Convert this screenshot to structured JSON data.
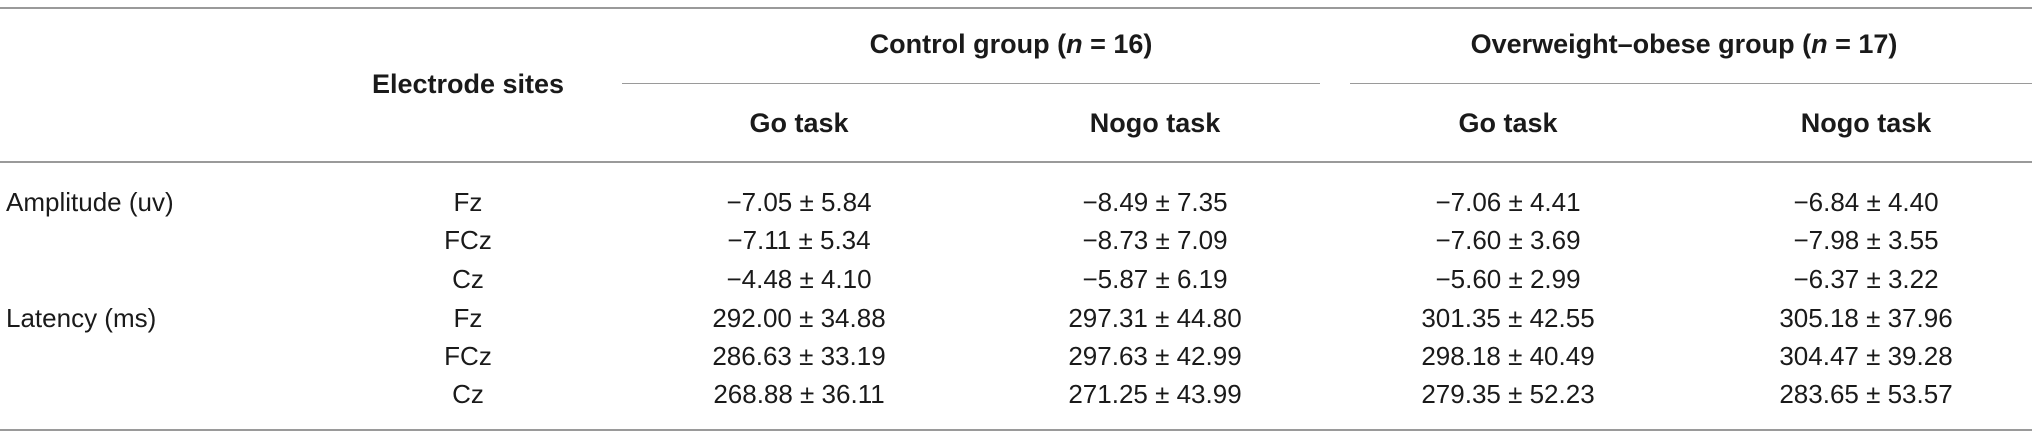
{
  "table": {
    "header": {
      "electrode_sites": "Electrode sites",
      "control_group": {
        "prefix": "Control group (",
        "n_symbol": "n",
        "suffix": " = 16)"
      },
      "obese_group": {
        "prefix": "Overweight–obese group (",
        "n_symbol": "n",
        "suffix": " = 17)"
      },
      "sub_columns": [
        "Go task",
        "Nogo task",
        "Go task",
        "Nogo task"
      ]
    },
    "rows": [
      {
        "measure": "Amplitude (uv)",
        "site": "Fz",
        "values": [
          "−7.05 ± 5.84",
          "−8.49 ± 7.35",
          "−7.06 ± 4.41",
          "−6.84 ± 4.40"
        ]
      },
      {
        "measure": "",
        "site": "FCz",
        "values": [
          "−7.11 ± 5.34",
          "−8.73 ± 7.09",
          "−7.60 ± 3.69",
          "−7.98 ± 3.55"
        ]
      },
      {
        "measure": "",
        "site": "Cz",
        "values": [
          "−4.48 ± 4.10",
          "−5.87 ± 6.19",
          "−5.60 ± 2.99",
          "−6.37 ± 3.22"
        ]
      },
      {
        "measure": "Latency (ms)",
        "site": "Fz",
        "values": [
          "292.00 ± 34.88",
          "297.31 ± 44.80",
          "301.35 ± 42.55",
          "305.18 ± 37.96"
        ]
      },
      {
        "measure": "",
        "site": "FCz",
        "values": [
          "286.63 ± 33.19",
          "297.63 ± 42.99",
          "298.18 ± 40.49",
          "304.47 ± 39.28"
        ]
      },
      {
        "measure": "",
        "site": "Cz",
        "values": [
          "268.88 ± 36.11",
          "271.25 ± 43.99",
          "279.35 ± 52.23",
          "283.65 ± 53.57"
        ]
      }
    ]
  }
}
